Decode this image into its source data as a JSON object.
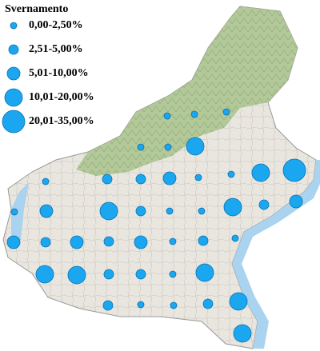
{
  "legend": {
    "title": "Svernamento",
    "classes": [
      "0,00-2,50%",
      "2,51-5,00%",
      "5,01-10,00%",
      "10,01-20,00%",
      "20,01-35,00%"
    ]
  }
}
